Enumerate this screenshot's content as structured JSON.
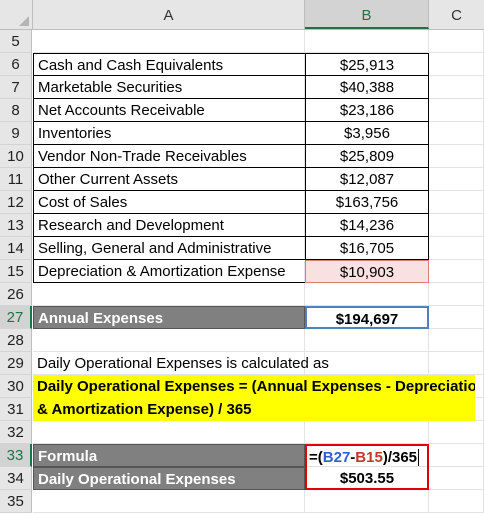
{
  "columns": [
    "A",
    "B",
    "C"
  ],
  "rows": [
    {
      "n": "5",
      "a": "",
      "b": ""
    },
    {
      "n": "6",
      "a": "Cash and Cash Equivalents",
      "b": "$25,913"
    },
    {
      "n": "7",
      "a": "Marketable Securities",
      "b": "$40,388"
    },
    {
      "n": "8",
      "a": "Net Accounts Receivable",
      "b": "$23,186"
    },
    {
      "n": "9",
      "a": "Inventories",
      "b": "$3,956"
    },
    {
      "n": "10",
      "a": "Vendor Non-Trade Receivables",
      "b": "$25,809"
    },
    {
      "n": "11",
      "a": "Other Current Assets",
      "b": "$12,087"
    },
    {
      "n": "12",
      "a": "Cost of Sales",
      "b": "$163,756"
    },
    {
      "n": "13",
      "a": "Research and Development",
      "b": "$14,236"
    },
    {
      "n": "14",
      "a": "Selling, General and Administrative",
      "b": "$16,705"
    },
    {
      "n": "15",
      "a": "Depreciation & Amortization Expense",
      "b": "$10,903"
    },
    {
      "n": "26",
      "a": "",
      "b": ""
    },
    {
      "n": "27",
      "a": "Annual Expenses",
      "b": "$194,697"
    },
    {
      "n": "28",
      "a": "",
      "b": ""
    },
    {
      "n": "29",
      "a": "Daily Operational Expenses  is calculated as",
      "b": ""
    },
    {
      "n": "30",
      "a": "Daily Operational Expenses = (Annual Expenses - Depreciation",
      "b": ""
    },
    {
      "n": "31",
      "a": "& Amortization Expense) / 365",
      "b": ""
    },
    {
      "n": "32",
      "a": "",
      "b": ""
    },
    {
      "n": "33",
      "a": "Formula",
      "b": ""
    },
    {
      "n": "34",
      "a": "Daily Operational Expenses",
      "b": "$503.55"
    },
    {
      "n": "35",
      "a": "",
      "b": ""
    }
  ],
  "formula": {
    "eq": "=(",
    "ref1": "B27",
    "minus": "-",
    "ref2": "B15",
    "tail": ")/365"
  },
  "colors": {
    "accent": "#217346",
    "ref1": "#2f5fd6",
    "ref2": "#c0392b",
    "highlight": "#ffff00",
    "header_fill": "#808080"
  }
}
